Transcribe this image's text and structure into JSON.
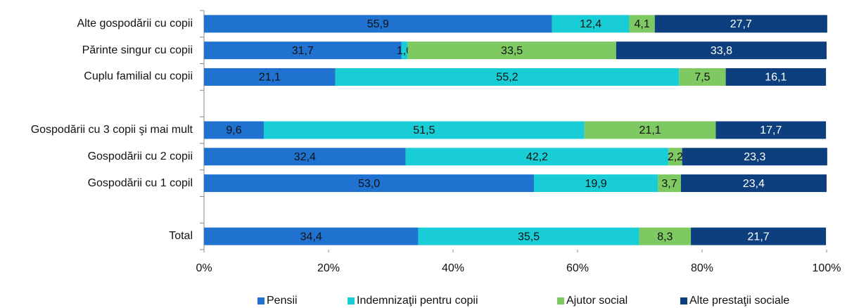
{
  "chart_data": {
    "type": "stacked-barh",
    "categories": [
      "Alte gospodării cu copii",
      "Părinte singur cu copii",
      "Cuplu familial cu copii",
      null,
      "Gospodării cu 3 copii şi mai mult",
      "Gospodării cu 2 copii",
      "Gospodării cu 1 copil",
      null,
      "Total"
    ],
    "series": [
      {
        "name": "Pensii",
        "color": "#1f72cf",
        "label_color": "#111111",
        "values": [
          55.9,
          31.7,
          21.1,
          null,
          9.6,
          32.4,
          53.0,
          null,
          34.4
        ],
        "value_labels": [
          "55,9",
          "31,7",
          "21,1",
          null,
          "9,6",
          "32,4",
          "53,0",
          null,
          "34,4"
        ]
      },
      {
        "name": "Indemnizaţii pentru copii",
        "color": "#19cdd6",
        "label_color": "#111111",
        "values": [
          12.4,
          1.0,
          55.2,
          null,
          51.5,
          42.2,
          19.9,
          null,
          35.5
        ],
        "value_labels": [
          "12,4",
          "1,0",
          "55,2",
          null,
          "51,5",
          "42,2",
          "19,9",
          null,
          "35,5"
        ]
      },
      {
        "name": "Ajutor social",
        "color": "#7ec961",
        "label_color": "#111111",
        "values": [
          4.1,
          33.5,
          7.5,
          null,
          21.1,
          2.2,
          3.7,
          null,
          8.3
        ],
        "value_labels": [
          "4,1",
          "33,5",
          "7,5",
          null,
          "21,1",
          "2,2",
          "3,7",
          null,
          "8,3"
        ]
      },
      {
        "name": "Alte prestaţii sociale",
        "color": "#0d3f7e",
        "label_color": "#ffffff",
        "values": [
          27.7,
          33.8,
          16.1,
          null,
          17.7,
          23.3,
          23.4,
          null,
          21.7
        ],
        "value_labels": [
          "27,7",
          "33,8",
          "16,1",
          null,
          "17,7",
          "23,3",
          "23,4",
          null,
          "21,7"
        ]
      }
    ],
    "xlim": [
      0,
      100
    ],
    "xticks": [
      {
        "value": 0,
        "label": "0%"
      },
      {
        "value": 20,
        "label": "20%"
      },
      {
        "value": 40,
        "label": "40%"
      },
      {
        "value": 60,
        "label": "60%"
      },
      {
        "value": 80,
        "label": "80%"
      },
      {
        "value": 100,
        "label": "100%"
      }
    ],
    "legend": "bottom"
  }
}
